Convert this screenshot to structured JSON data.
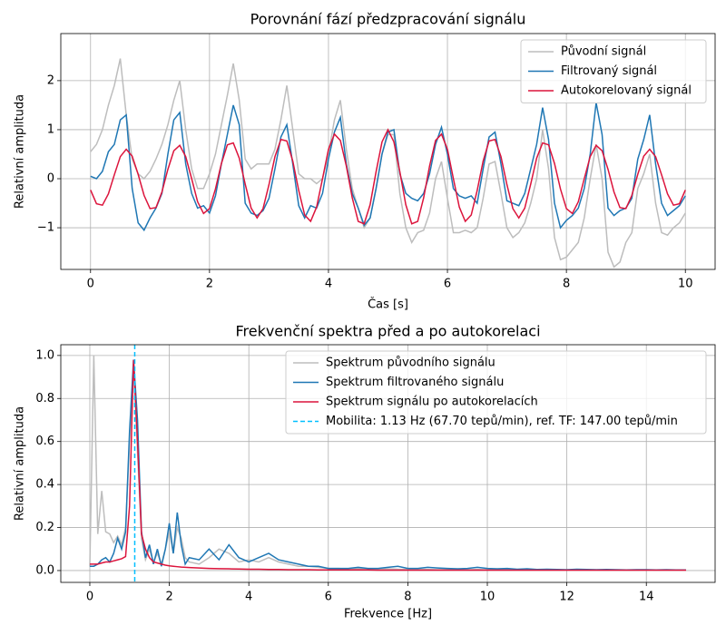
{
  "chart_data": [
    {
      "type": "line",
      "title": "Porovnání fází předzpracování signálu",
      "xlabel": "Čas [s]",
      "ylabel": "Relativní amplituda",
      "xlim": [
        -0.5,
        10.5
      ],
      "ylim": [
        -1.85,
        2.96
      ],
      "xticks": [
        0,
        2,
        4,
        6,
        8,
        10
      ],
      "yticks": [
        {
          "value": -1,
          "label": "−1"
        },
        0,
        1,
        2
      ],
      "grid": true,
      "legend": "upper right",
      "x": [
        0,
        0.1,
        0.2,
        0.3,
        0.4,
        0.5,
        0.6,
        0.7,
        0.8,
        0.9,
        1.0,
        1.1,
        1.2,
        1.3,
        1.4,
        1.5,
        1.6,
        1.7,
        1.8,
        1.9,
        2.0,
        2.1,
        2.2,
        2.3,
        2.4,
        2.5,
        2.6,
        2.7,
        2.8,
        2.9,
        3.0,
        3.1,
        3.2,
        3.3,
        3.4,
        3.5,
        3.6,
        3.7,
        3.8,
        3.9,
        4.0,
        4.1,
        4.2,
        4.3,
        4.4,
        4.5,
        4.6,
        4.7,
        4.8,
        4.9,
        5.0,
        5.1,
        5.2,
        5.3,
        5.4,
        5.5,
        5.6,
        5.7,
        5.8,
        5.9,
        6.0,
        6.1,
        6.2,
        6.3,
        6.4,
        6.5,
        6.6,
        6.7,
        6.8,
        6.9,
        7.0,
        7.1,
        7.2,
        7.3,
        7.4,
        7.5,
        7.6,
        7.7,
        7.8,
        7.9,
        8.0,
        8.1,
        8.2,
        8.3,
        8.4,
        8.5,
        8.6,
        8.7,
        8.8,
        8.9,
        9.0,
        9.1,
        9.2,
        9.3,
        9.4,
        9.5,
        9.6,
        9.7,
        9.8,
        9.9,
        10.0
      ],
      "series": [
        {
          "name": "Původní signál",
          "color": "#bdbdbd",
          "values": [
            0.55,
            0.7,
            1.0,
            1.5,
            1.9,
            2.45,
            1.3,
            0.4,
            0.1,
            0.0,
            0.15,
            0.4,
            0.7,
            1.1,
            1.6,
            2.0,
            1.0,
            0.2,
            -0.2,
            -0.2,
            0.1,
            0.5,
            1.1,
            1.7,
            2.35,
            1.6,
            0.4,
            0.2,
            0.3,
            0.3,
            0.3,
            0.6,
            1.2,
            1.9,
            1.0,
            0.1,
            0.0,
            0.0,
            -0.1,
            0.0,
            0.5,
            1.2,
            1.6,
            0.6,
            -0.2,
            -0.6,
            -1.0,
            -0.8,
            -0.2,
            0.5,
            0.9,
            0.9,
            -0.3,
            -1.0,
            -1.3,
            -1.1,
            -1.05,
            -0.7,
            0.0,
            0.35,
            -0.4,
            -1.1,
            -1.1,
            -1.05,
            -1.1,
            -1.0,
            -0.4,
            0.3,
            0.35,
            -0.3,
            -1.0,
            -1.2,
            -1.1,
            -0.9,
            -0.5,
            0.0,
            1.0,
            0.2,
            -1.2,
            -1.65,
            -1.6,
            -1.45,
            -1.3,
            -0.8,
            0.0,
            0.7,
            0.0,
            -1.5,
            -1.8,
            -1.7,
            -1.3,
            -1.1,
            -0.2,
            0.1,
            0.5,
            -0.5,
            -1.1,
            -1.15,
            -1.0,
            -0.9,
            -0.7
          ]
        },
        {
          "name": "Filtrovaný signál",
          "color": "#1f77b4",
          "values": [
            0.05,
            0.0,
            0.15,
            0.55,
            0.7,
            1.2,
            1.3,
            -0.2,
            -0.9,
            -1.05,
            -0.8,
            -0.6,
            -0.3,
            0.5,
            1.2,
            1.35,
            0.3,
            -0.3,
            -0.6,
            -0.55,
            -0.7,
            -0.35,
            0.3,
            0.9,
            1.5,
            1.1,
            -0.5,
            -0.7,
            -0.75,
            -0.65,
            -0.4,
            0.2,
            0.85,
            1.1,
            0.3,
            -0.55,
            -0.8,
            -0.55,
            -0.6,
            -0.3,
            0.4,
            0.95,
            1.25,
            0.3,
            -0.3,
            -0.6,
            -0.95,
            -0.8,
            -0.2,
            0.5,
            0.95,
            1.0,
            0.1,
            -0.3,
            -0.4,
            -0.45,
            -0.3,
            0.1,
            0.7,
            1.05,
            0.5,
            -0.2,
            -0.35,
            -0.4,
            -0.35,
            -0.5,
            0.2,
            0.85,
            0.95,
            0.3,
            -0.45,
            -0.5,
            -0.55,
            -0.3,
            0.2,
            0.7,
            1.45,
            0.8,
            -0.5,
            -1.0,
            -0.85,
            -0.75,
            -0.6,
            -0.2,
            0.5,
            1.55,
            0.9,
            -0.6,
            -0.75,
            -0.65,
            -0.6,
            -0.4,
            0.4,
            0.8,
            1.3,
            0.3,
            -0.5,
            -0.75,
            -0.65,
            -0.55,
            -0.35
          ]
        },
        {
          "name": "Autokorelovaný signál",
          "color": "#dc143c",
          "values": [
            -0.23,
            -0.51,
            -0.54,
            -0.31,
            0.08,
            0.45,
            0.6,
            0.46,
            0.09,
            -0.34,
            -0.61,
            -0.59,
            -0.27,
            0.19,
            0.57,
            0.68,
            0.45,
            0.0,
            -0.47,
            -0.71,
            -0.61,
            -0.21,
            0.31,
            0.69,
            0.73,
            0.42,
            -0.11,
            -0.6,
            -0.8,
            -0.61,
            -0.12,
            0.45,
            0.8,
            0.77,
            0.36,
            -0.24,
            -0.74,
            -0.87,
            -0.58,
            0.0,
            0.6,
            0.91,
            0.78,
            0.26,
            -0.39,
            -0.87,
            -0.92,
            -0.53,
            0.14,
            0.75,
            1.0,
            0.75,
            0.14,
            -0.53,
            -0.92,
            -0.87,
            -0.39,
            0.26,
            0.78,
            0.91,
            0.6,
            0.0,
            -0.58,
            -0.87,
            -0.74,
            -0.24,
            0.36,
            0.77,
            0.8,
            0.45,
            -0.12,
            -0.61,
            -0.8,
            -0.6,
            -0.11,
            0.42,
            0.73,
            0.69,
            0.31,
            -0.21,
            -0.61,
            -0.71,
            -0.47,
            0.0,
            0.45,
            0.68,
            0.57,
            0.19,
            -0.27,
            -0.59,
            -0.61,
            -0.34,
            0.09,
            0.46,
            0.6,
            0.45,
            0.08,
            -0.31,
            -0.54,
            -0.51,
            -0.23
          ]
        }
      ]
    },
    {
      "type": "line",
      "title": "Frekvenční spektra před a po autokorelaci",
      "xlabel": "Frekvence [Hz]",
      "ylabel": "Relativní amplituda",
      "xlim": [
        -0.73,
        15.73
      ],
      "ylim": [
        -0.055,
        1.05
      ],
      "xticks": [
        0,
        2,
        4,
        6,
        8,
        10,
        12,
        14
      ],
      "yticks": [
        {
          "value": 0,
          "label": "0.0"
        },
        {
          "value": 0.2,
          "label": "0.2"
        },
        {
          "value": 0.4,
          "label": "0.4"
        },
        {
          "value": 0.6,
          "label": "0.6"
        },
        {
          "value": 0.8,
          "label": "0.8"
        },
        {
          "value": 1,
          "label": "1.0"
        }
      ],
      "grid": true,
      "legend": "upper right",
      "x": [
        0,
        0.1,
        0.2,
        0.3,
        0.4,
        0.5,
        0.6,
        0.7,
        0.8,
        0.9,
        1.0,
        1.1,
        1.2,
        1.3,
        1.4,
        1.5,
        1.6,
        1.7,
        1.8,
        1.9,
        2.0,
        2.1,
        2.2,
        2.3,
        2.4,
        2.5,
        2.75,
        3,
        3.25,
        3.5,
        3.75,
        4,
        4.25,
        4.5,
        4.75,
        5,
        5.25,
        5.5,
        5.75,
        6,
        6.25,
        6.5,
        6.75,
        7,
        7.25,
        7.5,
        7.75,
        8,
        8.25,
        8.5,
        8.75,
        9,
        9.25,
        9.5,
        9.75,
        10,
        10.25,
        10.5,
        10.75,
        11,
        11.25,
        11.5,
        11.75,
        12,
        12.25,
        12.5,
        12.75,
        13,
        13.25,
        13.5,
        13.75,
        14,
        14.25,
        14.5,
        14.75,
        15
      ],
      "series": [
        {
          "name": "Spektrum původního signálu",
          "color": "#bdbdbd",
          "values": [
            0.02,
            1.0,
            0.17,
            0.37,
            0.18,
            0.17,
            0.13,
            0.16,
            0.12,
            0.2,
            0.6,
            0.95,
            0.55,
            0.15,
            0.05,
            0.1,
            0.04,
            0.08,
            0.03,
            0.1,
            0.18,
            0.08,
            0.2,
            0.15,
            0.06,
            0.04,
            0.03,
            0.06,
            0.1,
            0.08,
            0.04,
            0.05,
            0.04,
            0.06,
            0.04,
            0.03,
            0.02,
            0.02,
            0.015,
            0.01,
            0.01,
            0.008,
            0.01,
            0.008,
            0.006,
            0.008,
            0.006,
            0.005,
            0.006,
            0.005,
            0.004,
            0.005,
            0.004,
            0.004,
            0.005,
            0.004,
            0.004,
            0.003,
            0.004,
            0.003,
            0.003,
            0.004,
            0.003,
            0.003,
            0.003,
            0.003,
            0.003,
            0.002,
            0.003,
            0.002,
            0.002,
            0.003,
            0.002,
            0.002,
            0.002,
            0.002
          ]
        },
        {
          "name": "Spektrum filtrovaného signálu",
          "color": "#1f77b4",
          "values": [
            0.02,
            0.02,
            0.03,
            0.05,
            0.06,
            0.04,
            0.08,
            0.15,
            0.1,
            0.18,
            0.65,
            0.98,
            0.7,
            0.18,
            0.06,
            0.12,
            0.03,
            0.1,
            0.02,
            0.1,
            0.22,
            0.08,
            0.27,
            0.12,
            0.03,
            0.06,
            0.05,
            0.1,
            0.05,
            0.12,
            0.06,
            0.04,
            0.06,
            0.08,
            0.05,
            0.04,
            0.03,
            0.02,
            0.02,
            0.01,
            0.01,
            0.01,
            0.015,
            0.01,
            0.01,
            0.015,
            0.02,
            0.01,
            0.01,
            0.015,
            0.012,
            0.01,
            0.008,
            0.01,
            0.015,
            0.01,
            0.008,
            0.01,
            0.006,
            0.008,
            0.005,
            0.006,
            0.005,
            0.004,
            0.006,
            0.005,
            0.004,
            0.005,
            0.004,
            0.003,
            0.004,
            0.004,
            0.003,
            0.004,
            0.003,
            0.003
          ]
        },
        {
          "name": "Spektrum signálu po autokorelacích",
          "color": "#dc143c",
          "values": [
            0.03,
            0.03,
            0.03,
            0.035,
            0.04,
            0.04,
            0.045,
            0.05,
            0.055,
            0.065,
            0.3,
            0.98,
            0.6,
            0.17,
            0.1,
            0.06,
            0.04,
            0.035,
            0.03,
            0.025,
            0.022,
            0.02,
            0.018,
            0.016,
            0.015,
            0.014,
            0.012,
            0.01,
            0.009,
            0.008,
            0.007,
            0.006,
            0.006,
            0.005,
            0.005,
            0.004,
            0.004,
            0.004,
            0.003,
            0.003,
            0.003,
            0.003,
            0.003,
            0.003,
            0.002,
            0.002,
            0.002,
            0.002,
            0.002,
            0.002,
            0.002,
            0.002,
            0.002,
            0.002,
            0.002,
            0.002,
            0.002,
            0.002,
            0.002,
            0.002,
            0.002,
            0.002,
            0.002,
            0.002,
            0.002,
            0.002,
            0.002,
            0.002,
            0.002,
            0.002,
            0.002,
            0.002,
            0.002,
            0.002,
            0.002,
            0.002
          ]
        }
      ],
      "vline": {
        "x": 1.13,
        "color": "#00bfff",
        "label": "Mobilita: 1.13 Hz (67.70 tepů/min), ref. TF: 147.00 tepů/min"
      }
    }
  ]
}
